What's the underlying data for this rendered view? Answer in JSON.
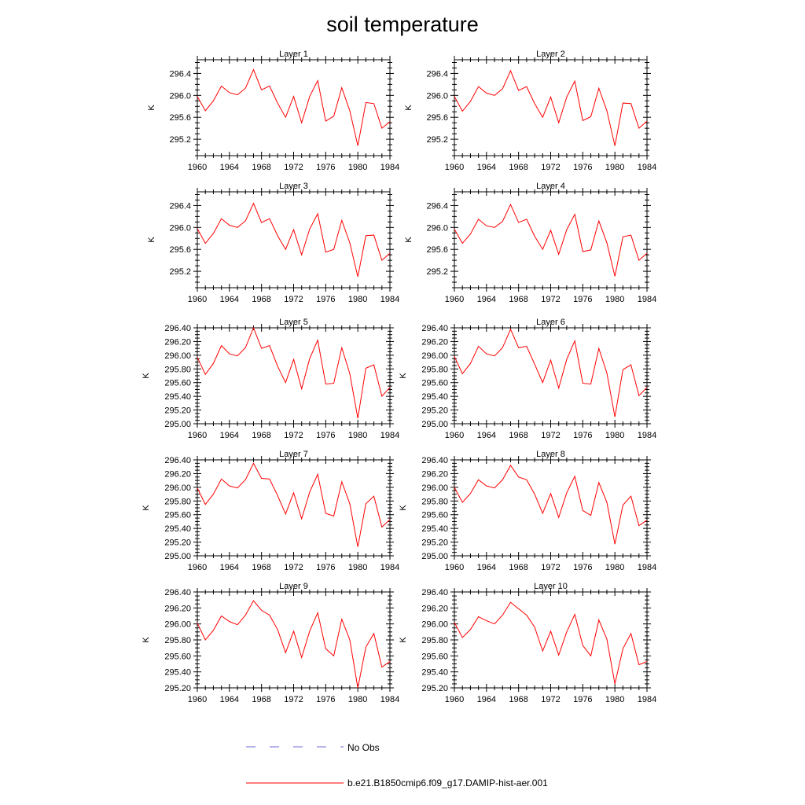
{
  "title": "soil temperature",
  "legend": {
    "items": [
      {
        "label": "No Obs",
        "color": "#6b6bd6",
        "style": "dashed"
      },
      {
        "label": "b.e21.B1850cmip6.f09_g17.DAMIP-hist-aer.001",
        "color": "#ff0000",
        "style": "solid"
      }
    ]
  },
  "chart_data": [
    {
      "type": "line",
      "title": "Layer 1",
      "ylabel": "K",
      "xlim": [
        1960,
        1984
      ],
      "ylim": [
        294.9,
        296.65
      ],
      "xticks": [
        1960,
        1964,
        1968,
        1972,
        1976,
        1980,
        1984
      ],
      "yticks": [
        295.2,
        295.6,
        296.0,
        296.4
      ],
      "ytick_decimals": 1,
      "x": [
        1960,
        1961,
        1962,
        1963,
        1964,
        1965,
        1966,
        1967,
        1968,
        1969,
        1970,
        1971,
        1972,
        1973,
        1974,
        1975,
        1976,
        1977,
        1978,
        1979,
        1980,
        1981,
        1982,
        1983,
        1984
      ],
      "series": [
        {
          "values": [
            295.98,
            295.72,
            295.9,
            296.17,
            296.05,
            296.01,
            296.13,
            296.47,
            296.1,
            296.17,
            295.86,
            295.6,
            295.98,
            295.5,
            295.98,
            296.27,
            295.53,
            295.62,
            296.14,
            295.72,
            295.08,
            295.87,
            295.85,
            295.4,
            295.52
          ],
          "color": "#ff0000"
        }
      ]
    },
    {
      "type": "line",
      "title": "Layer 2",
      "ylabel": "K",
      "xlim": [
        1960,
        1984
      ],
      "ylim": [
        294.9,
        296.65
      ],
      "xticks": [
        1960,
        1964,
        1968,
        1972,
        1976,
        1980,
        1984
      ],
      "yticks": [
        295.2,
        295.6,
        296.0,
        296.4
      ],
      "ytick_decimals": 1,
      "x": [
        1960,
        1961,
        1962,
        1963,
        1964,
        1965,
        1966,
        1967,
        1968,
        1969,
        1970,
        1971,
        1972,
        1973,
        1974,
        1975,
        1976,
        1977,
        1978,
        1979,
        1980,
        1981,
        1982,
        1983,
        1984
      ],
      "series": [
        {
          "values": [
            295.98,
            295.71,
            295.89,
            296.16,
            296.04,
            296.0,
            296.12,
            296.45,
            296.09,
            296.16,
            295.85,
            295.6,
            295.97,
            295.5,
            295.97,
            296.26,
            295.54,
            295.61,
            296.13,
            295.72,
            295.08,
            295.86,
            295.85,
            295.4,
            295.53
          ],
          "color": "#ff0000"
        }
      ]
    },
    {
      "type": "line",
      "title": "Layer 3",
      "ylabel": "K",
      "xlim": [
        1960,
        1984
      ],
      "ylim": [
        294.9,
        296.65
      ],
      "xticks": [
        1960,
        1964,
        1968,
        1972,
        1976,
        1980,
        1984
      ],
      "yticks": [
        295.2,
        295.6,
        296.0,
        296.4
      ],
      "ytick_decimals": 1,
      "x": [
        1960,
        1961,
        1962,
        1963,
        1964,
        1965,
        1966,
        1967,
        1968,
        1969,
        1970,
        1971,
        1972,
        1973,
        1974,
        1975,
        1976,
        1977,
        1978,
        1979,
        1980,
        1981,
        1982,
        1983,
        1984
      ],
      "series": [
        {
          "values": [
            295.98,
            295.71,
            295.89,
            296.16,
            296.04,
            296.0,
            296.12,
            296.44,
            296.09,
            296.16,
            295.85,
            295.6,
            295.96,
            295.5,
            295.97,
            296.25,
            295.55,
            295.6,
            296.13,
            295.72,
            295.1,
            295.85,
            295.86,
            295.4,
            295.53
          ],
          "color": "#ff0000"
        }
      ]
    },
    {
      "type": "line",
      "title": "Layer 4",
      "ylabel": "K",
      "xlim": [
        1960,
        1984
      ],
      "ylim": [
        294.9,
        296.65
      ],
      "xticks": [
        1960,
        1964,
        1968,
        1972,
        1976,
        1980,
        1984
      ],
      "yticks": [
        295.2,
        295.6,
        296.0,
        296.4
      ],
      "ytick_decimals": 1,
      "x": [
        1960,
        1961,
        1962,
        1963,
        1964,
        1965,
        1966,
        1967,
        1968,
        1969,
        1970,
        1971,
        1972,
        1973,
        1974,
        1975,
        1976,
        1977,
        1978,
        1979,
        1980,
        1981,
        1982,
        1983,
        1984
      ],
      "series": [
        {
          "values": [
            295.97,
            295.71,
            295.88,
            296.15,
            296.03,
            296.0,
            296.11,
            296.42,
            296.09,
            296.15,
            295.84,
            295.6,
            295.95,
            295.51,
            295.96,
            296.24,
            295.56,
            295.59,
            296.12,
            295.72,
            295.11,
            295.83,
            295.86,
            295.4,
            295.53
          ],
          "color": "#ff0000"
        }
      ]
    },
    {
      "type": "line",
      "title": "Layer 5",
      "ylabel": "K",
      "xlim": [
        1960,
        1984
      ],
      "ylim": [
        295.0,
        296.4
      ],
      "xticks": [
        1960,
        1964,
        1968,
        1972,
        1976,
        1980,
        1984
      ],
      "yticks": [
        295.0,
        295.2,
        295.4,
        295.6,
        295.8,
        296.0,
        296.2,
        296.4
      ],
      "ytick_decimals": 2,
      "x": [
        1960,
        1961,
        1962,
        1963,
        1964,
        1965,
        1966,
        1967,
        1968,
        1969,
        1970,
        1971,
        1972,
        1973,
        1974,
        1975,
        1976,
        1977,
        1978,
        1979,
        1980,
        1981,
        1982,
        1983,
        1984
      ],
      "series": [
        {
          "values": [
            295.97,
            295.72,
            295.88,
            296.14,
            296.02,
            295.99,
            296.11,
            296.4,
            296.1,
            296.14,
            295.84,
            295.6,
            295.94,
            295.51,
            295.95,
            296.22,
            295.58,
            295.59,
            296.11,
            295.73,
            295.08,
            295.81,
            295.86,
            295.4,
            295.53
          ],
          "color": "#ff0000"
        }
      ]
    },
    {
      "type": "line",
      "title": "Layer 6",
      "ylabel": "K",
      "xlim": [
        1960,
        1984
      ],
      "ylim": [
        295.0,
        296.4
      ],
      "xticks": [
        1960,
        1964,
        1968,
        1972,
        1976,
        1980,
        1984
      ],
      "yticks": [
        295.0,
        295.2,
        295.4,
        295.6,
        295.8,
        296.0,
        296.2,
        296.4
      ],
      "ytick_decimals": 2,
      "x": [
        1960,
        1961,
        1962,
        1963,
        1964,
        1965,
        1966,
        1967,
        1968,
        1969,
        1970,
        1971,
        1972,
        1973,
        1974,
        1975,
        1976,
        1977,
        1978,
        1979,
        1980,
        1981,
        1982,
        1983,
        1984
      ],
      "series": [
        {
          "values": [
            295.98,
            295.73,
            295.88,
            296.13,
            296.02,
            295.99,
            296.11,
            296.38,
            296.11,
            296.13,
            295.87,
            295.6,
            295.93,
            295.52,
            295.94,
            296.21,
            295.59,
            295.58,
            296.1,
            295.74,
            295.1,
            295.79,
            295.86,
            295.41,
            295.53
          ],
          "color": "#ff0000"
        }
      ]
    },
    {
      "type": "line",
      "title": "Layer 7",
      "ylabel": "K",
      "xlim": [
        1960,
        1984
      ],
      "ylim": [
        295.0,
        296.4
      ],
      "xticks": [
        1960,
        1964,
        1968,
        1972,
        1976,
        1980,
        1984
      ],
      "yticks": [
        295.0,
        295.2,
        295.4,
        295.6,
        295.8,
        296.0,
        296.2,
        296.4
      ],
      "ytick_decimals": 2,
      "x": [
        1960,
        1961,
        1962,
        1963,
        1964,
        1965,
        1966,
        1967,
        1968,
        1969,
        1970,
        1971,
        1972,
        1973,
        1974,
        1975,
        1976,
        1977,
        1978,
        1979,
        1980,
        1981,
        1982,
        1983,
        1984
      ],
      "series": [
        {
          "values": [
            295.99,
            295.75,
            295.9,
            296.12,
            296.02,
            295.99,
            296.11,
            296.35,
            296.13,
            296.12,
            295.88,
            295.61,
            295.92,
            295.54,
            295.93,
            296.19,
            295.62,
            295.58,
            296.08,
            295.76,
            295.13,
            295.76,
            295.87,
            295.42,
            295.53
          ],
          "color": "#ff0000"
        }
      ]
    },
    {
      "type": "line",
      "title": "Layer 8",
      "ylabel": "K",
      "xlim": [
        1960,
        1984
      ],
      "ylim": [
        295.0,
        296.4
      ],
      "xticks": [
        1960,
        1964,
        1968,
        1972,
        1976,
        1980,
        1984
      ],
      "yticks": [
        295.0,
        295.2,
        295.4,
        295.6,
        295.8,
        296.0,
        296.2,
        296.4
      ],
      "ytick_decimals": 2,
      "x": [
        1960,
        1961,
        1962,
        1963,
        1964,
        1965,
        1966,
        1967,
        1968,
        1969,
        1970,
        1971,
        1972,
        1973,
        1974,
        1975,
        1976,
        1977,
        1978,
        1979,
        1980,
        1981,
        1982,
        1983,
        1984
      ],
      "series": [
        {
          "values": [
            296.0,
            295.78,
            295.91,
            296.11,
            296.02,
            295.99,
            296.11,
            296.32,
            296.15,
            296.11,
            295.9,
            295.62,
            295.91,
            295.56,
            295.92,
            296.16,
            295.66,
            295.59,
            296.07,
            295.78,
            295.17,
            295.74,
            295.87,
            295.44,
            295.52
          ],
          "color": "#ff0000"
        }
      ]
    },
    {
      "type": "line",
      "title": "Layer 9",
      "ylabel": "K",
      "xlim": [
        1960,
        1984
      ],
      "ylim": [
        295.2,
        296.4
      ],
      "xticks": [
        1960,
        1964,
        1968,
        1972,
        1976,
        1980,
        1984
      ],
      "yticks": [
        295.2,
        295.4,
        295.6,
        295.8,
        296.0,
        296.2,
        296.4
      ],
      "ytick_decimals": 2,
      "x": [
        1960,
        1961,
        1962,
        1963,
        1964,
        1965,
        1966,
        1967,
        1968,
        1969,
        1970,
        1971,
        1972,
        1973,
        1974,
        1975,
        1976,
        1977,
        1978,
        1979,
        1980,
        1981,
        1982,
        1983,
        1984
      ],
      "series": [
        {
          "values": [
            296.01,
            295.8,
            295.92,
            296.1,
            296.03,
            295.99,
            296.11,
            296.29,
            296.17,
            296.11,
            295.93,
            295.64,
            295.91,
            295.58,
            295.91,
            296.14,
            295.69,
            295.6,
            296.06,
            295.8,
            295.2,
            295.71,
            295.88,
            295.46,
            295.53
          ],
          "color": "#ff0000"
        }
      ]
    },
    {
      "type": "line",
      "title": "Layer 10",
      "ylabel": "K",
      "xlim": [
        1960,
        1984
      ],
      "ylim": [
        295.2,
        296.4
      ],
      "xticks": [
        1960,
        1964,
        1968,
        1972,
        1976,
        1980,
        1984
      ],
      "yticks": [
        295.2,
        295.4,
        295.6,
        295.8,
        296.0,
        296.2,
        296.4
      ],
      "ytick_decimals": 2,
      "x": [
        1960,
        1961,
        1962,
        1963,
        1964,
        1965,
        1966,
        1967,
        1968,
        1969,
        1970,
        1971,
        1972,
        1973,
        1974,
        1975,
        1976,
        1977,
        1978,
        1979,
        1980,
        1981,
        1982,
        1983,
        1984
      ],
      "series": [
        {
          "values": [
            296.02,
            295.83,
            295.93,
            296.09,
            296.04,
            296.0,
            296.11,
            296.27,
            296.19,
            296.11,
            295.96,
            295.66,
            295.91,
            295.61,
            295.9,
            296.12,
            295.73,
            295.6,
            296.05,
            295.81,
            295.25,
            295.69,
            295.88,
            295.49,
            295.53
          ],
          "color": "#ff0000"
        }
      ]
    }
  ]
}
